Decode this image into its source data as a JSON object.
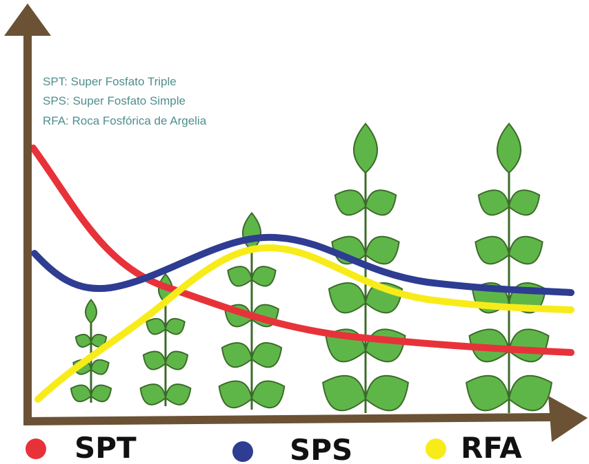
{
  "notes": [
    "SPT: Super Fosfato Triple",
    "SPS: Super Fosfato Simple",
    "RFA: Roca Fosfórica de Argelia"
  ],
  "legend": [
    {
      "label": "SPT",
      "color": "#e8323a"
    },
    {
      "label": "SPS",
      "color": "#2e3c92"
    },
    {
      "label": "RFA",
      "color": "#f7ec1a"
    }
  ]
}
